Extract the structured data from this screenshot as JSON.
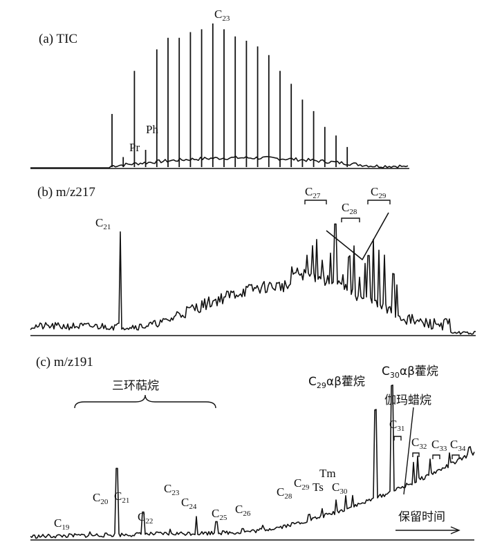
{
  "chart_data": [
    {
      "type": "line",
      "title": "(a) TIC",
      "peaks": [
        {
          "name": "",
          "rt": 1,
          "h": 0.37
        },
        {
          "name": "Pr",
          "rt": 2,
          "h": 0.07
        },
        {
          "name": "",
          "rt": 3,
          "h": 0.67
        },
        {
          "name": "Ph",
          "rt": 4,
          "h": 0.12
        },
        {
          "name": "",
          "rt": 5,
          "h": 0.82
        },
        {
          "name": "",
          "rt": 6,
          "h": 0.9
        },
        {
          "name": "",
          "rt": 7,
          "h": 0.9
        },
        {
          "name": "",
          "rt": 8,
          "h": 0.94
        },
        {
          "name": "",
          "rt": 9,
          "h": 0.96
        },
        {
          "name": "C23",
          "rt": 10,
          "h": 1.0
        },
        {
          "name": "",
          "rt": 11,
          "h": 0.96
        },
        {
          "name": "",
          "rt": 12,
          "h": 0.91
        },
        {
          "name": "",
          "rt": 13,
          "h": 0.88
        },
        {
          "name": "",
          "rt": 14,
          "h": 0.84
        },
        {
          "name": "",
          "rt": 15,
          "h": 0.78
        },
        {
          "name": "",
          "rt": 16,
          "h": 0.67
        },
        {
          "name": "",
          "rt": 17,
          "h": 0.58
        },
        {
          "name": "",
          "rt": 18,
          "h": 0.47
        },
        {
          "name": "",
          "rt": 19,
          "h": 0.39
        },
        {
          "name": "",
          "rt": 20,
          "h": 0.28
        },
        {
          "name": "",
          "rt": 21,
          "h": 0.22
        },
        {
          "name": "",
          "rt": 22,
          "h": 0.14
        }
      ]
    },
    {
      "type": "line",
      "title": "(b) m/z217",
      "labels": [
        "C21",
        "C27",
        "C28",
        "C29"
      ],
      "key_peaks": [
        {
          "name": "C21",
          "rt": 12.9,
          "h": 0.78
        },
        {
          "name": "C27",
          "rt": 43.7,
          "h": 0.84
        },
        {
          "name": "C28",
          "rt": 48.4,
          "h": 0.6
        },
        {
          "name": "C29",
          "rt": 52.5,
          "h": 0.84
        }
      ]
    },
    {
      "type": "line",
      "title": "(c) m/z191",
      "group_label": "三环萜烷",
      "annotations": [
        "C29αβ藿烷",
        "C30αβ藿烷",
        "伽玛蜡烷"
      ],
      "peaks": [
        {
          "name": "C19",
          "rt": 9,
          "h": 0.05
        },
        {
          "name": "C20",
          "rt": 13,
          "h": 0.62
        },
        {
          "name": "C21",
          "rt": 17,
          "h": 0.22
        },
        {
          "name": "C22",
          "rt": 21,
          "h": 0.06
        },
        {
          "name": "C23",
          "rt": 25,
          "h": 0.17
        },
        {
          "name": "C24",
          "rt": 28,
          "h": 0.12
        },
        {
          "name": "C25",
          "rt": 32,
          "h": 0.05
        },
        {
          "name": "C26",
          "rt": 35,
          "h": 0.06
        },
        {
          "name": "C28",
          "rt": 42,
          "h": 0.07
        },
        {
          "name": "C29",
          "rt": 44,
          "h": 0.09
        },
        {
          "name": "Ts",
          "rt": 46,
          "h": 0.13
        },
        {
          "name": "Tm",
          "rt": 47.5,
          "h": 0.14
        },
        {
          "name": "C30",
          "rt": 48.5,
          "h": 0.12
        },
        {
          "name": "C29αβ藿烷",
          "rt": 52,
          "h": 0.82
        },
        {
          "name": "C30αβ藿烷",
          "rt": 54.5,
          "h": 0.98
        },
        {
          "name": "伽玛蜡烷",
          "rt": 57.7,
          "h": 0.2
        },
        {
          "name": "C31",
          "rt": 58.3,
          "h": 0.24
        },
        {
          "name": "C32",
          "rt": 60.2,
          "h": 0.16
        },
        {
          "name": "C33",
          "rt": 63.1,
          "h": 0.13
        },
        {
          "name": "C34",
          "rt": 66.1,
          "h": 0.09
        }
      ],
      "xlabel": "保留时间"
    }
  ]
}
